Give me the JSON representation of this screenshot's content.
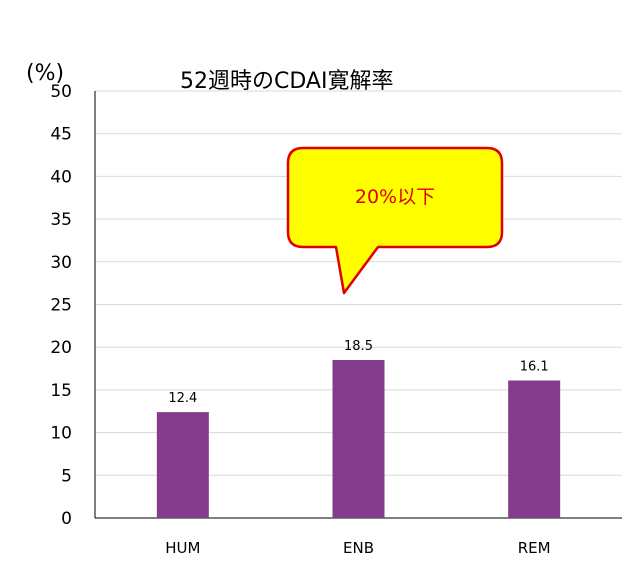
{
  "chart_data": {
    "type": "bar",
    "title": "52週時のCDAI寛解率",
    "ylabel": "(%)",
    "xlabel": "",
    "categories": [
      "HUM",
      "ENB",
      "REM"
    ],
    "values": [
      12.4,
      18.5,
      16.1
    ],
    "data_labels": [
      "12.4",
      "18.5",
      "16.1"
    ],
    "ylim": [
      0,
      50
    ],
    "yticks": [
      0,
      5,
      10,
      15,
      20,
      25,
      30,
      35,
      40,
      45,
      50
    ],
    "grid": true,
    "legend": "none",
    "bar_color": "#843c8c",
    "annotations": [
      {
        "text": "20%以下",
        "target_category": "ENB",
        "fill": "#ffff00",
        "border": "#e00000",
        "text_color": "#e00000"
      }
    ]
  }
}
